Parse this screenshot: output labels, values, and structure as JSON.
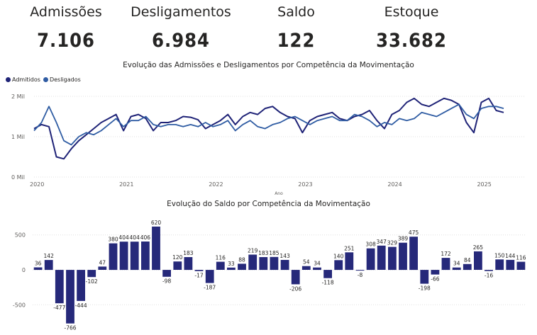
{
  "kpis": [
    {
      "label": "Admissões",
      "value": "7.106"
    },
    {
      "label": "Desligamentos",
      "value": "6.984"
    },
    {
      "label": "Saldo",
      "value": "122"
    },
    {
      "label": "Estoque",
      "value": "33.682"
    }
  ],
  "colors": {
    "admitidos": "#1f2377",
    "desligados": "#2f5ca3",
    "bars": "#26297a",
    "grid": "#e1e1e1",
    "text": "#252423"
  },
  "chart_data": [
    {
      "type": "line",
      "title": "Evolução das Admissões e Desligamentos por Competência da Movimentação",
      "xlabel": "Ano",
      "ylabel": "",
      "ylim": [
        0,
        2000
      ],
      "y_ticks": [
        {
          "value": 0,
          "label": "0 Mil"
        },
        {
          "value": 1000,
          "label": "1 Mil"
        },
        {
          "value": 2000,
          "label": "2 Mil"
        }
      ],
      "x_ticks": [
        {
          "index": 0,
          "label": "2020"
        },
        {
          "index": 12,
          "label": "2021"
        },
        {
          "index": 24,
          "label": "2022"
        },
        {
          "index": 36,
          "label": "2023"
        },
        {
          "index": 48,
          "label": "2024"
        },
        {
          "index": 60,
          "label": "2025"
        }
      ],
      "legend": "top-left",
      "series": [
        {
          "name": "Admitidos",
          "values": [
            1200,
            1300,
            1250,
            500,
            450,
            700,
            900,
            1050,
            1200,
            1350,
            1450,
            1550,
            1150,
            1500,
            1550,
            1450,
            1150,
            1350,
            1350,
            1400,
            1500,
            1480,
            1420,
            1200,
            1300,
            1400,
            1550,
            1300,
            1500,
            1600,
            1550,
            1700,
            1750,
            1600,
            1500,
            1450,
            1100,
            1400,
            1500,
            1550,
            1600,
            1450,
            1400,
            1500,
            1550,
            1650,
            1400,
            1200,
            1550,
            1650,
            1850,
            1950,
            1800,
            1750,
            1850,
            1950,
            1900,
            1800,
            1350,
            1100,
            1850,
            1950,
            1650,
            1600
          ]
        },
        {
          "name": "Desligados",
          "values": [
            1150,
            1350,
            1750,
            1350,
            900,
            800,
            1000,
            1100,
            1050,
            1150,
            1300,
            1450,
            1250,
            1400,
            1400,
            1500,
            1300,
            1250,
            1300,
            1300,
            1250,
            1300,
            1250,
            1350,
            1250,
            1300,
            1400,
            1150,
            1300,
            1400,
            1250,
            1200,
            1300,
            1350,
            1450,
            1500,
            1400,
            1300,
            1400,
            1450,
            1500,
            1400,
            1400,
            1550,
            1500,
            1400,
            1250,
            1350,
            1300,
            1450,
            1400,
            1450,
            1600,
            1550,
            1500,
            1600,
            1700,
            1800,
            1550,
            1450,
            1700,
            1750,
            1750,
            1700
          ]
        }
      ]
    },
    {
      "type": "bar",
      "title": "Evolução do Saldo por Competência da Movimentação",
      "xlabel": "",
      "ylabel": "",
      "ylim": [
        -800,
        700
      ],
      "y_ticks": [
        {
          "value": -500,
          "label": "-500"
        },
        {
          "value": 0,
          "label": "0"
        },
        {
          "value": 500,
          "label": "500"
        }
      ],
      "values": [
        36,
        142,
        -477,
        -766,
        -444,
        -102,
        47,
        380,
        404,
        404,
        406,
        620,
        -98,
        120,
        183,
        -17,
        -187,
        116,
        33,
        88,
        219,
        183,
        185,
        143,
        -206,
        54,
        34,
        -118,
        140,
        251,
        -8,
        308,
        347,
        329,
        389,
        475,
        -198,
        -66,
        172,
        34,
        84,
        265,
        -16,
        150,
        144,
        116
      ]
    }
  ]
}
